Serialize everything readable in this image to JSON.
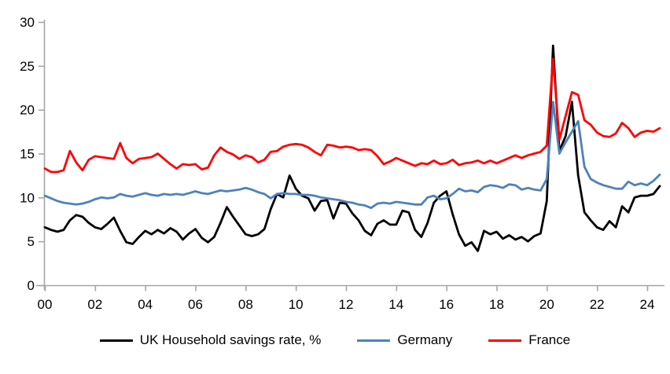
{
  "chart_data": {
    "type": "line",
    "title": "",
    "xlabel": "",
    "ylabel": "",
    "grid": false,
    "legend_position": "bottom",
    "ylim": [
      0,
      30
    ],
    "y_ticks": [
      0,
      5,
      10,
      15,
      20,
      25,
      30
    ],
    "y_tick_labels": [
      "0",
      "5",
      "10",
      "15",
      "20",
      "25",
      "30"
    ],
    "x_tick_labels": [
      "00",
      "02",
      "04",
      "06",
      "08",
      "10",
      "12",
      "14",
      "16",
      "18",
      "20",
      "22",
      "24"
    ],
    "x_tick_years": [
      0,
      2,
      4,
      6,
      8,
      10,
      12,
      14,
      16,
      18,
      20,
      22,
      24
    ],
    "x_frequency": "quarterly",
    "x_start": "2000 Q1",
    "x_end": "2024 Q3",
    "axis_color": "#a6a6a6",
    "series": [
      {
        "name": "UK Household savings rate, %",
        "color": "#000000",
        "values": [
          6.6,
          6.3,
          6.1,
          6.3,
          7.4,
          8.0,
          7.8,
          7.1,
          6.6,
          6.4,
          7.0,
          7.7,
          6.2,
          4.9,
          4.7,
          5.5,
          6.2,
          5.8,
          6.3,
          5.9,
          6.5,
          6.1,
          5.2,
          5.9,
          6.4,
          5.4,
          4.9,
          5.5,
          7.1,
          8.9,
          7.8,
          6.8,
          5.8,
          5.6,
          5.8,
          6.4,
          8.7,
          10.4,
          10.0,
          12.5,
          11.0,
          10.2,
          9.9,
          8.5,
          9.6,
          9.7,
          7.6,
          9.4,
          9.3,
          8.2,
          7.4,
          6.2,
          5.7,
          7.0,
          7.4,
          6.9,
          6.9,
          8.5,
          8.3,
          6.3,
          5.5,
          7.1,
          9.4,
          10.2,
          10.7,
          8.1,
          5.8,
          4.5,
          4.9,
          3.9,
          6.2,
          5.8,
          6.1,
          5.3,
          5.7,
          5.2,
          5.5,
          5.0,
          5.6,
          5.9,
          9.6,
          27.3,
          15.3,
          17.0,
          20.9,
          12.5,
          8.3,
          7.4,
          6.6,
          6.3,
          7.3,
          6.6,
          9.0,
          8.3,
          10.0,
          10.2,
          10.2,
          10.4,
          11.3
        ]
      },
      {
        "name": "Germany",
        "color": "#4e81bd",
        "values": [
          10.2,
          9.9,
          9.6,
          9.4,
          9.3,
          9.2,
          9.3,
          9.5,
          9.8,
          10.0,
          9.9,
          10.0,
          10.4,
          10.2,
          10.1,
          10.3,
          10.5,
          10.3,
          10.2,
          10.4,
          10.3,
          10.4,
          10.3,
          10.5,
          10.7,
          10.5,
          10.4,
          10.6,
          10.8,
          10.7,
          10.8,
          10.9,
          11.1,
          10.9,
          10.6,
          10.4,
          9.9,
          10.4,
          10.5,
          10.4,
          10.4,
          10.3,
          10.3,
          10.2,
          10.0,
          9.9,
          9.8,
          9.7,
          9.5,
          9.4,
          9.2,
          9.1,
          8.8,
          9.3,
          9.4,
          9.3,
          9.5,
          9.4,
          9.3,
          9.2,
          9.2,
          10.0,
          10.2,
          9.8,
          9.9,
          10.4,
          11.0,
          10.7,
          10.8,
          10.6,
          11.2,
          11.4,
          11.3,
          11.1,
          11.5,
          11.4,
          10.9,
          11.1,
          10.9,
          10.8,
          12.1,
          20.9,
          15.0,
          16.3,
          17.5,
          18.7,
          13.5,
          12.1,
          11.7,
          11.4,
          11.2,
          11.0,
          11.0,
          11.8,
          11.4,
          11.6,
          11.4,
          11.9,
          12.6
        ]
      },
      {
        "name": "France",
        "color": "#ff0000",
        "values": [
          13.3,
          12.9,
          12.9,
          13.1,
          15.3,
          14.0,
          13.1,
          14.3,
          14.7,
          14.6,
          14.5,
          14.4,
          16.2,
          14.5,
          13.9,
          14.4,
          14.5,
          14.6,
          15.0,
          14.4,
          13.8,
          13.3,
          13.8,
          13.7,
          13.8,
          13.2,
          13.4,
          14.8,
          15.7,
          15.2,
          14.9,
          14.4,
          14.8,
          14.6,
          14.0,
          14.3,
          15.2,
          15.3,
          15.8,
          16.0,
          16.1,
          16.0,
          15.7,
          15.2,
          14.8,
          16.0,
          15.9,
          15.7,
          15.8,
          15.7,
          15.4,
          15.5,
          15.4,
          14.7,
          13.8,
          14.1,
          14.5,
          14.2,
          13.9,
          13.6,
          13.9,
          13.8,
          14.2,
          13.8,
          13.9,
          14.3,
          13.7,
          13.9,
          14.0,
          14.2,
          13.9,
          14.2,
          13.9,
          14.2,
          14.5,
          14.8,
          14.5,
          14.8,
          15.0,
          15.2,
          15.9,
          25.8,
          16.6,
          19.3,
          22.0,
          21.7,
          18.8,
          18.3,
          17.4,
          17.0,
          16.9,
          17.3,
          18.5,
          17.9,
          16.9,
          17.4,
          17.6,
          17.5,
          17.9
        ]
      }
    ]
  }
}
